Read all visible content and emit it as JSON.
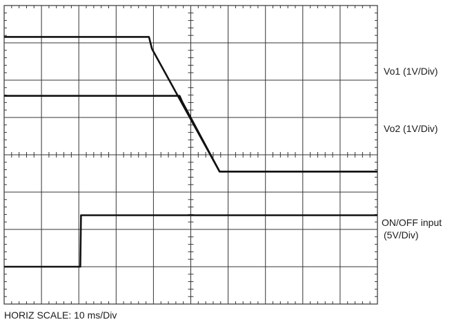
{
  "chart_data": {
    "type": "line",
    "title": "",
    "xlabel": "HORIZ SCALE: 10 ms/Div",
    "ylabel": "",
    "grid": true,
    "x_divisions": 10,
    "y_divisions": 8,
    "x_unit": "ms",
    "xlim": [
      0,
      100
    ],
    "ylim": [
      0,
      8
    ],
    "series": [
      {
        "name": "Vo1 (1V/Div)",
        "x": [
          0,
          38.8,
          39.6,
          57.7,
          100
        ],
        "y": [
          7.16,
          7.16,
          6.84,
          3.55,
          3.55
        ]
      },
      {
        "name": "Vo2 (1V/Div)",
        "x": [
          0,
          47.0,
          47.7,
          57.7,
          100
        ],
        "y": [
          5.58,
          5.58,
          5.42,
          3.55,
          3.55
        ]
      },
      {
        "name": "ON/OFF input (5V/Div)",
        "x": [
          0,
          20.4,
          20.6,
          100
        ],
        "y": [
          1.0,
          1.0,
          2.38,
          2.38
        ]
      }
    ],
    "annotations": [
      "Vo1 (1V/Div)",
      "Vo2 (1V/Div)",
      "ON/OFF input",
      "(5V/Div)"
    ]
  }
}
